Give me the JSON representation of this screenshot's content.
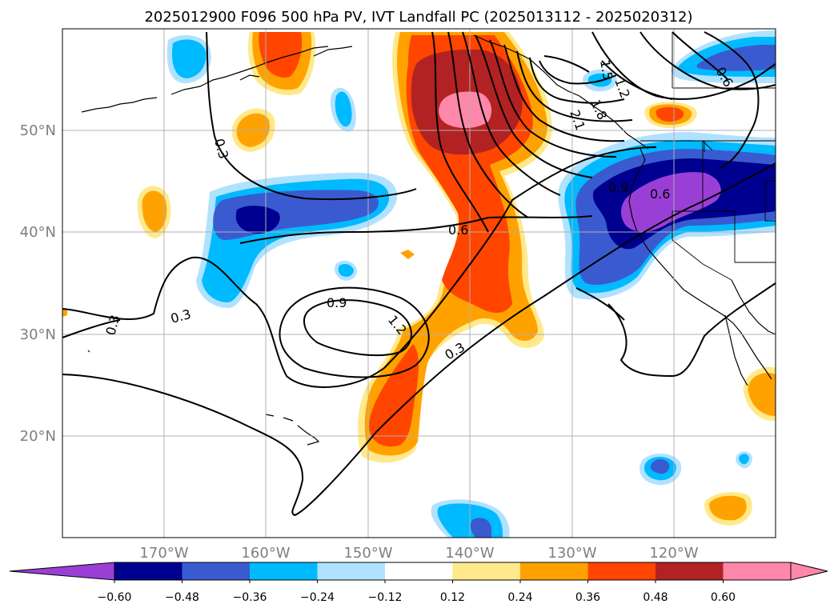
{
  "title": "2025012900 F096 500 hPa PV, IVT Landfall PC (2025013112 - 2025020312)",
  "map": {
    "lon_ticks": [
      "170°W",
      "160°W",
      "150°W",
      "140°W",
      "130°W",
      "120°W"
    ],
    "lat_ticks": [
      "50°N",
      "40°N",
      "30°N",
      "20°N"
    ],
    "grid": true
  },
  "contour_labels": [
    "0.3",
    "0.3",
    "0.3",
    "0.3",
    "0.6",
    "0.9",
    "1.2",
    "0.9",
    "0.6",
    "2.1",
    "1.5",
    "1.2",
    "1.8",
    "0.6"
  ],
  "colorbar": {
    "ticks": [
      "−0.60",
      "−0.48",
      "−0.36",
      "−0.24",
      "−0.12",
      "0.12",
      "0.24",
      "0.36",
      "0.48",
      "0.60"
    ],
    "colors": [
      "#9a3fd6",
      "#000090",
      "#3a5bd0",
      "#00baff",
      "#b0e2ff",
      "#ffffff",
      "#ffe98a",
      "#ffa200",
      "#ff4500",
      "#b22222",
      "#ff88aa",
      "#ff88aa"
    ],
    "extend": "both"
  },
  "colors": {
    "purple": "#9a3fd6",
    "navy": "#000090",
    "blue": "#3a5bd0",
    "sky": "#00baff",
    "lightblue": "#b0e2ff",
    "yellow": "#ffe98a",
    "orange": "#ffa200",
    "redorange": "#ff4500",
    "firebrick": "#b22222",
    "pink": "#ff88aa"
  }
}
